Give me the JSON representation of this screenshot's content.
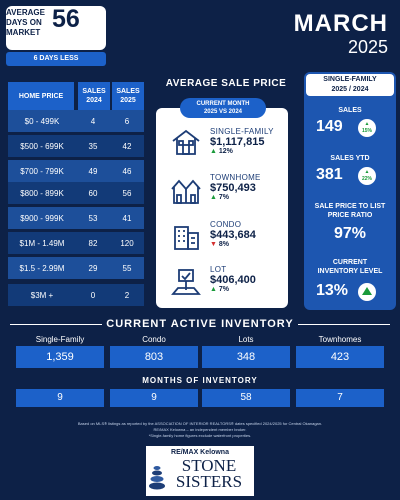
{
  "days_on_market": {
    "label": "AVERAGE DAYS ON MARKET",
    "value": "56",
    "change": "6 DAYS LESS"
  },
  "header": {
    "month": "MARCH",
    "year": "2025"
  },
  "price_table": {
    "headers": {
      "range": "HOME PRICE",
      "sales_2024": "SALES 2024",
      "sales_2025": "SALES 2025"
    },
    "rows": [
      {
        "range": "$0 - 499K",
        "sales_2024": "4",
        "sales_2025": "6"
      },
      {
        "range": "$500 - 699K",
        "sales_2024": "35",
        "sales_2025": "42"
      },
      {
        "range": "$700 - 799K",
        "sales_2024": "49",
        "sales_2025": "46"
      },
      {
        "range": "$800 - 899K",
        "sales_2024": "60",
        "sales_2025": "56"
      },
      {
        "range": "$900 - 999K",
        "sales_2024": "53",
        "sales_2025": "41"
      },
      {
        "range": "$1M - 1.49M",
        "sales_2024": "82",
        "sales_2025": "120"
      },
      {
        "range": "$1.5 - 2.99M",
        "sales_2024": "29",
        "sales_2025": "55"
      },
      {
        "range": "$3M +",
        "sales_2024": "0",
        "sales_2025": "2"
      }
    ]
  },
  "average_sale_price": {
    "title": "AVERAGE SALE PRICE",
    "pill_line1": "CURRENT MONTH",
    "pill_line2": "2025 VS 2024",
    "items": [
      {
        "type": "SINGLE-FAMILY",
        "price": "$1,117,815",
        "change": "12%",
        "direction": "up",
        "icon": "house-icon"
      },
      {
        "type": "TOWNHOME",
        "price": "$750,493",
        "change": "7%",
        "direction": "up",
        "icon": "townhome-icon"
      },
      {
        "type": "CONDO",
        "price": "$443,684",
        "change": "8%",
        "direction": "down",
        "icon": "condo-building-icon"
      },
      {
        "type": "LOT",
        "price": "$406,400",
        "change": "7%",
        "direction": "up",
        "icon": "lot-sign-icon"
      }
    ]
  },
  "single_family": {
    "title_line1": "SINGLE-FAMILY",
    "title_line2": "2025 / 2024",
    "sales_label": "SALES",
    "sales_value": "149",
    "sales_change": "15%",
    "sales_ytd_label": "SALES YTD",
    "sales_ytd_value": "381",
    "sales_ytd_change": "22%",
    "ratio_label_line1": "SALE PRICE TO LIST",
    "ratio_label_line2": "PRICE RATIO",
    "ratio_value": "97%",
    "inventory_label_line1": "CURRENT",
    "inventory_label_line2": "INVENTORY LEVEL",
    "inventory_value": "13%"
  },
  "active_inventory": {
    "title": "CURRENT ACTIVE INVENTORY",
    "labels": [
      "Single-Family",
      "Condo",
      "Lots",
      "Townhomes"
    ],
    "values": [
      "1,359",
      "803",
      "348",
      "423"
    ]
  },
  "months_of_inventory": {
    "title": "MONTHS OF INVENTORY",
    "values": [
      "9",
      "9",
      "58",
      "7"
    ]
  },
  "footer": {
    "line1": "Based on MLS® listings as reported by the ASSOCIATION OF INTERIOR REALTORS® dates specified 2024/2025 for Central Okanagan.",
    "line2": "RE/MAX Kelowna – an independent member broker.",
    "line3": "*Single-family home figures exclude waterfront properties."
  },
  "logo": {
    "brand": "RE/MAX Kelowna",
    "line1": "STONE",
    "line2": "SISTERS"
  },
  "colors": {
    "background": "#0d2147",
    "accent": "#1c61c9",
    "up": "#1a9a3a",
    "down": "#d33030"
  }
}
